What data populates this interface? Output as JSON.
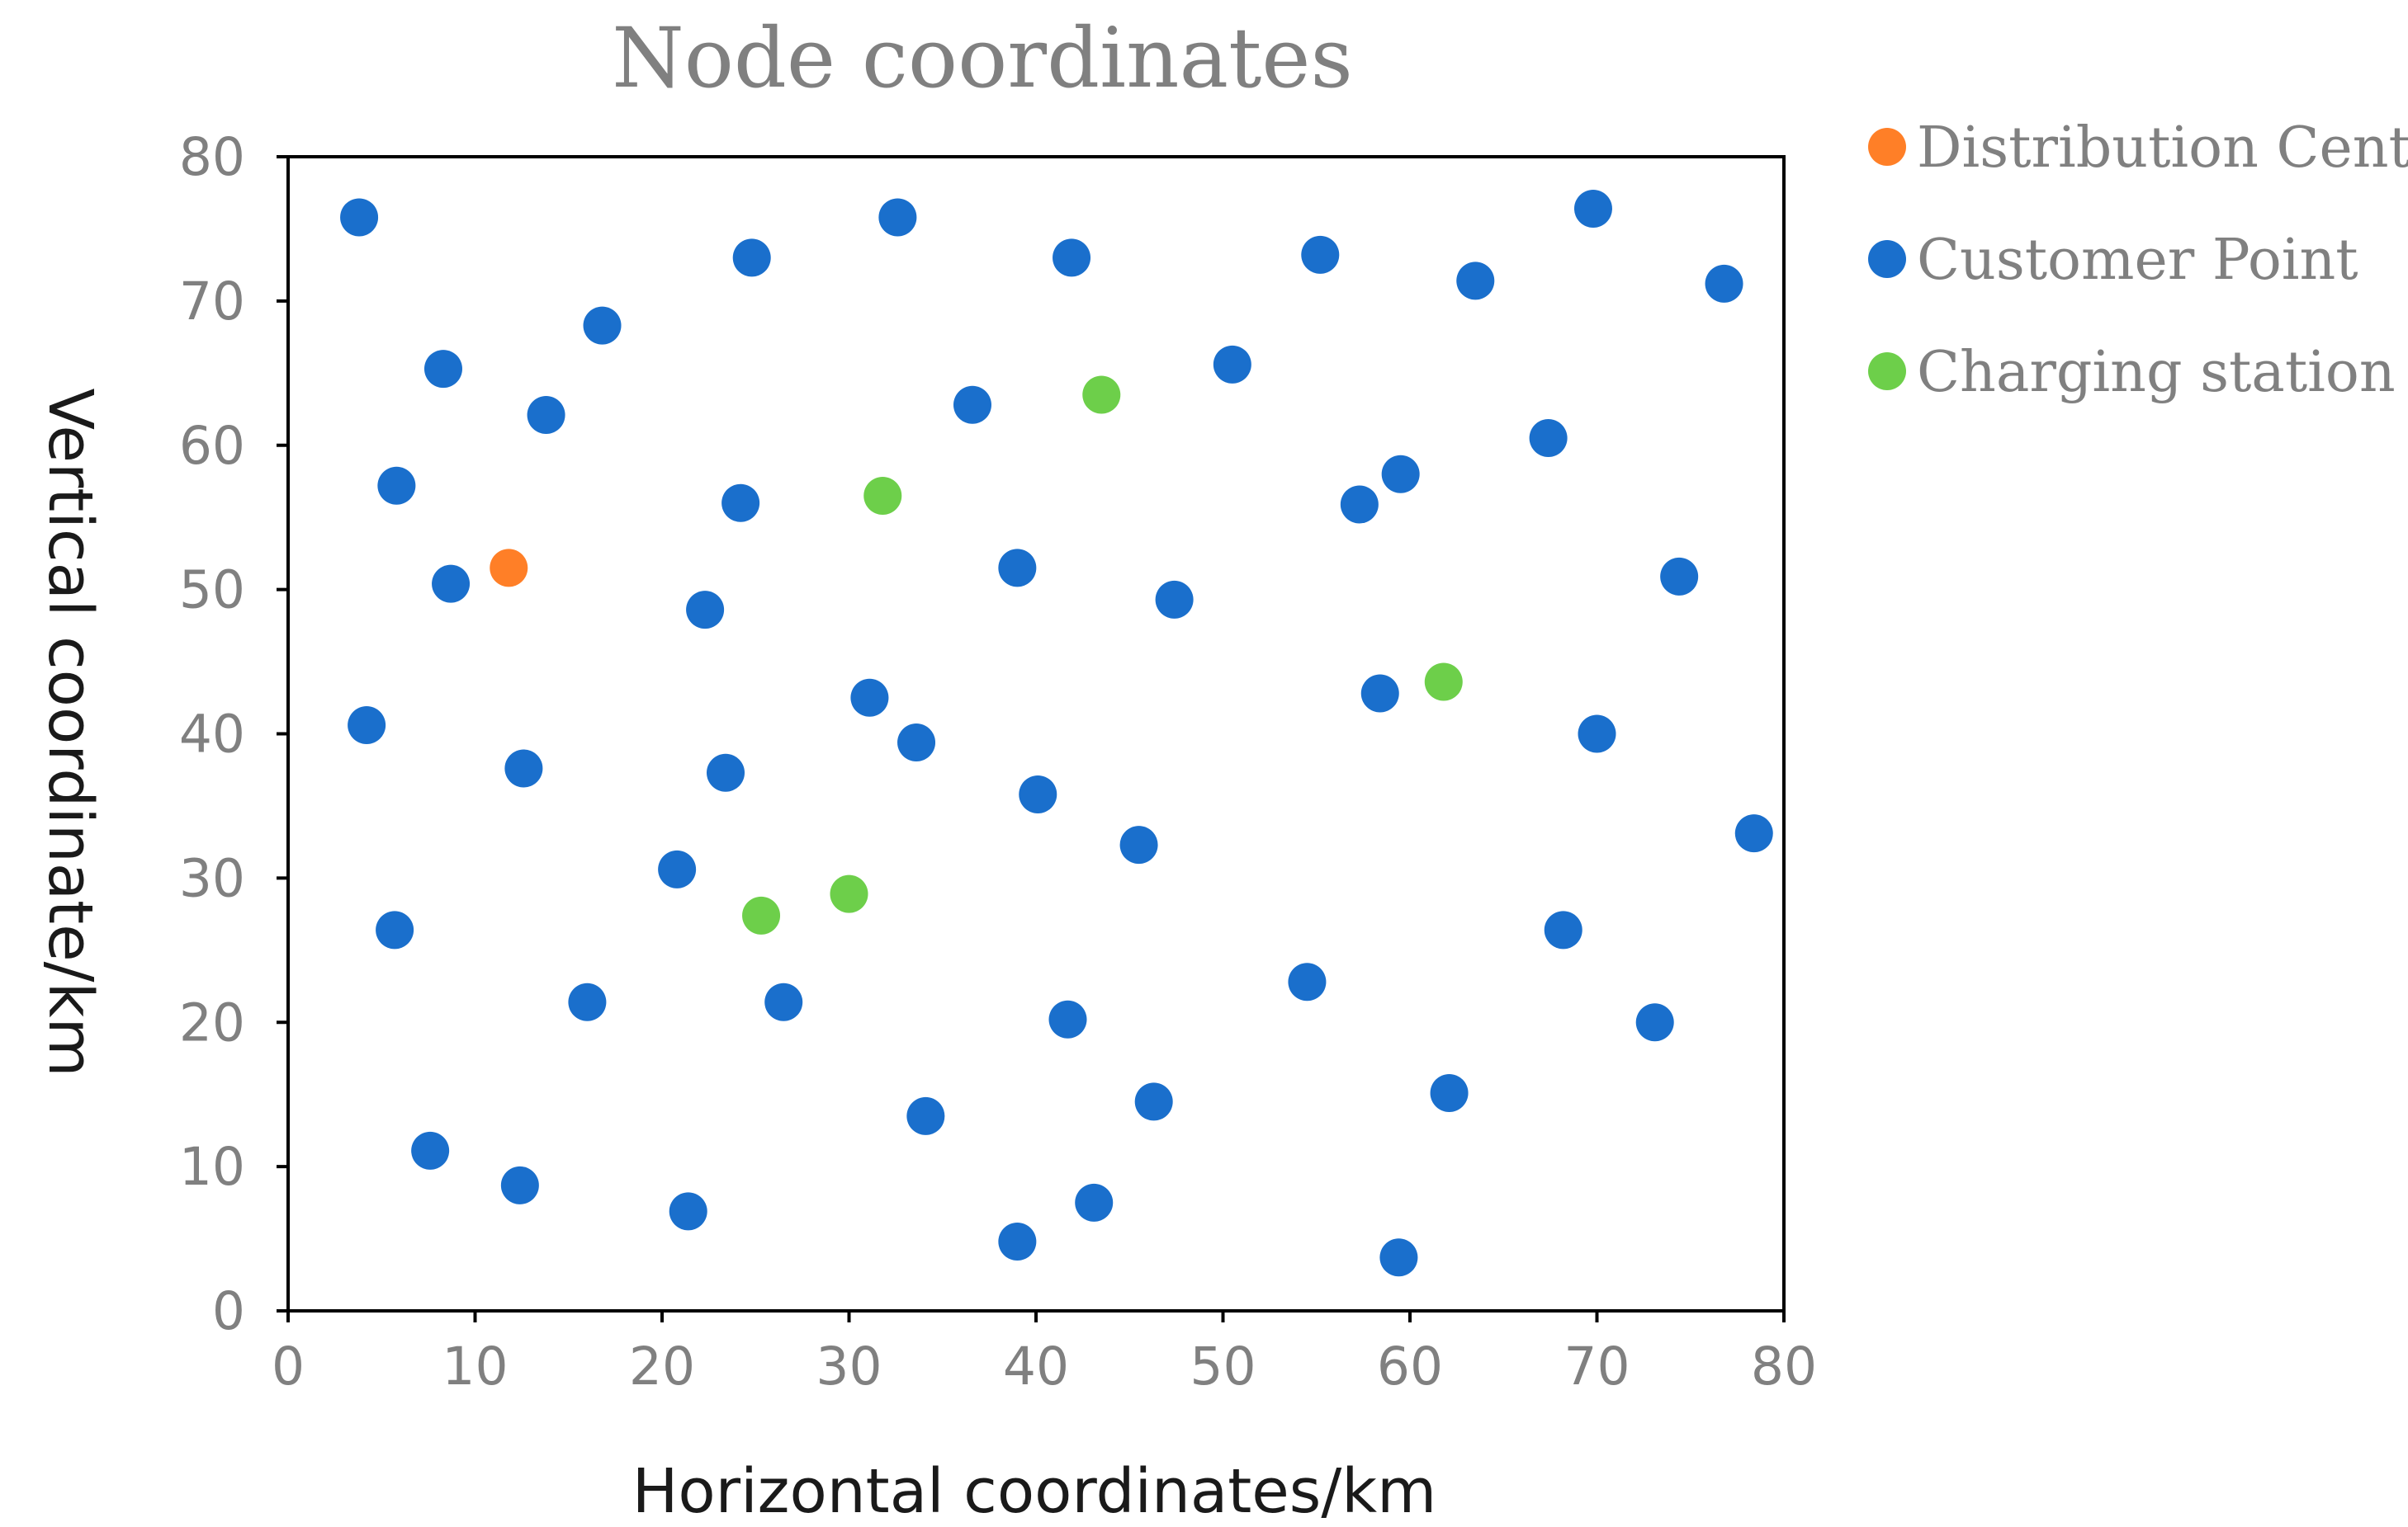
{
  "chart_data": {
    "type": "scatter",
    "title": "Node coordinates",
    "xlabel": "Horizontal coordinates/km",
    "ylabel": "Vertical coordinate/km",
    "xlim": [
      0,
      80
    ],
    "ylim": [
      0,
      80
    ],
    "xticks": [
      "0",
      "10",
      "20",
      "30",
      "40",
      "50",
      "60",
      "70",
      "80"
    ],
    "yticks": [
      "0",
      "10",
      "20",
      "30",
      "40",
      "50",
      "60",
      "70",
      "80"
    ],
    "grid": false,
    "legend_position": "right-top",
    "series": [
      {
        "name": "Distribution Center",
        "color": "#ff7f27",
        "points": [
          [
            11.8,
            51.5
          ]
        ]
      },
      {
        "name": "Customer Point",
        "color": "#1a6fcc",
        "points": [
          [
            3.8,
            75.8
          ],
          [
            24.8,
            73.0
          ],
          [
            32.6,
            75.8
          ],
          [
            41.9,
            73.0
          ],
          [
            55.2,
            73.2
          ],
          [
            69.8,
            76.4
          ],
          [
            63.5,
            71.4
          ],
          [
            76.8,
            71.2
          ],
          [
            16.8,
            68.3
          ],
          [
            8.3,
            65.3
          ],
          [
            13.8,
            62.1
          ],
          [
            36.6,
            62.8
          ],
          [
            50.5,
            65.6
          ],
          [
            67.4,
            60.5
          ],
          [
            5.8,
            57.2
          ],
          [
            24.2,
            56.0
          ],
          [
            57.3,
            55.9
          ],
          [
            59.5,
            58.0
          ],
          [
            8.7,
            50.4
          ],
          [
            22.3,
            48.6
          ],
          [
            39.0,
            51.5
          ],
          [
            47.4,
            49.3
          ],
          [
            74.4,
            50.9
          ],
          [
            4.2,
            40.6
          ],
          [
            12.6,
            37.6
          ],
          [
            23.4,
            37.3
          ],
          [
            31.1,
            42.5
          ],
          [
            33.6,
            39.4
          ],
          [
            40.1,
            35.8
          ],
          [
            58.4,
            42.8
          ],
          [
            70.0,
            40.0
          ],
          [
            45.5,
            32.3
          ],
          [
            78.4,
            33.1
          ],
          [
            20.8,
            30.6
          ],
          [
            5.7,
            26.4
          ],
          [
            16.0,
            21.4
          ],
          [
            26.5,
            21.4
          ],
          [
            41.7,
            20.2
          ],
          [
            54.5,
            22.8
          ],
          [
            68.2,
            26.4
          ],
          [
            73.1,
            20.0
          ],
          [
            34.1,
            13.5
          ],
          [
            46.3,
            14.5
          ],
          [
            62.1,
            15.1
          ],
          [
            7.6,
            11.1
          ],
          [
            12.4,
            8.7
          ],
          [
            21.4,
            6.9
          ],
          [
            39.0,
            4.8
          ],
          [
            43.1,
            7.5
          ],
          [
            59.4,
            3.7
          ]
        ]
      },
      {
        "name": "Charging station",
        "color": "#6dcf4a",
        "points": [
          [
            43.5,
            63.5
          ],
          [
            31.8,
            56.5
          ],
          [
            61.8,
            43.6
          ],
          [
            25.3,
            27.4
          ],
          [
            30.0,
            28.9
          ]
        ]
      }
    ]
  }
}
